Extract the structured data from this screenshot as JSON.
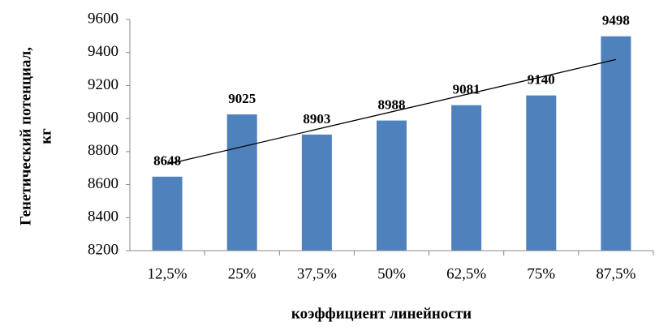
{
  "chart_data": {
    "type": "bar",
    "x_label": "коэффициент линейности",
    "y_label": [
      "Генетический потенциал,",
      "кг"
    ],
    "categories": [
      "12,5%",
      "25%",
      "37,5%",
      "50%",
      "62,5%",
      "75%",
      "87,5%"
    ],
    "values": [
      8648,
      9025,
      8903,
      8988,
      9081,
      9140,
      9498
    ],
    "color": "#4f81bd",
    "ylim": [
      8200,
      9600
    ],
    "yticks": [
      8200,
      8400,
      8600,
      8800,
      9000,
      9200,
      9400,
      9600
    ],
    "grid": false,
    "trendline": true,
    "data_labels": true
  }
}
